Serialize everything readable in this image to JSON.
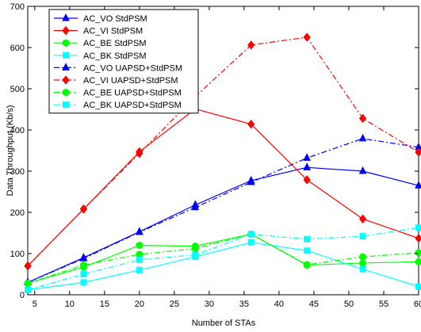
{
  "chart_data": {
    "type": "line",
    "title": "",
    "xlabel": "Number of STAs",
    "ylabel": "Data Throughput (Kb/s)",
    "xlim": [
      4,
      60
    ],
    "ylim": [
      0,
      700
    ],
    "xticks": [
      "5",
      "10",
      "15",
      "20",
      "25",
      "30",
      "35",
      "40",
      "45",
      "50",
      "55",
      "60"
    ],
    "yticks": [
      "0",
      "100",
      "200",
      "300",
      "400",
      "500",
      "600",
      "700"
    ],
    "x": [
      4,
      12,
      20,
      28,
      36,
      44,
      52,
      60
    ],
    "grid": false,
    "legend_position": "top-left",
    "series": [
      {
        "name": "AC_VO StdPSM",
        "color": "#0000ff",
        "marker": "triangle",
        "dash": "solid",
        "values": [
          30,
          90,
          153,
          218,
          277,
          309,
          300,
          265
        ]
      },
      {
        "name": "AC_VI StdPSM",
        "color": "#ff0000",
        "marker": "diamond",
        "dash": "solid",
        "values": [
          70,
          208,
          347,
          451,
          414,
          279,
          184,
          137
        ]
      },
      {
        "name": "AC_BE StdPSM",
        "color": "#00ff00",
        "marker": "circle",
        "dash": "solid",
        "values": [
          28,
          67,
          120,
          118,
          147,
          72,
          77,
          80
        ]
      },
      {
        "name": "AC_BK StdPSM",
        "color": "#00ffff",
        "marker": "square",
        "dash": "solid",
        "values": [
          12,
          30,
          60,
          92,
          127,
          107,
          62,
          20
        ]
      },
      {
        "name": "AC_VO UAPSD+StdPSM",
        "color": "#0000ff",
        "marker": "triangle",
        "dash": "dashdot",
        "values": [
          30,
          88,
          152,
          212,
          273,
          332,
          379,
          358
        ]
      },
      {
        "name": "AC_VI UAPSD+StdPSM",
        "color": "#ff0000",
        "marker": "diamond",
        "dash": "dashdot",
        "values": [
          70,
          208,
          343,
          481,
          606,
          625,
          428,
          346
        ]
      },
      {
        "name": "AC_BE UAPSD+StdPSM",
        "color": "#00ff00",
        "marker": "circle",
        "dash": "dashdot",
        "values": [
          28,
          72,
          98,
          112,
          147,
          73,
          92,
          102
        ]
      },
      {
        "name": "AC_BK UAPSD+StdPSM",
        "color": "#00ffff",
        "marker": "square",
        "dash": "dashdot",
        "values": [
          12,
          50,
          85,
          97,
          147,
          135,
          142,
          163
        ]
      }
    ]
  }
}
